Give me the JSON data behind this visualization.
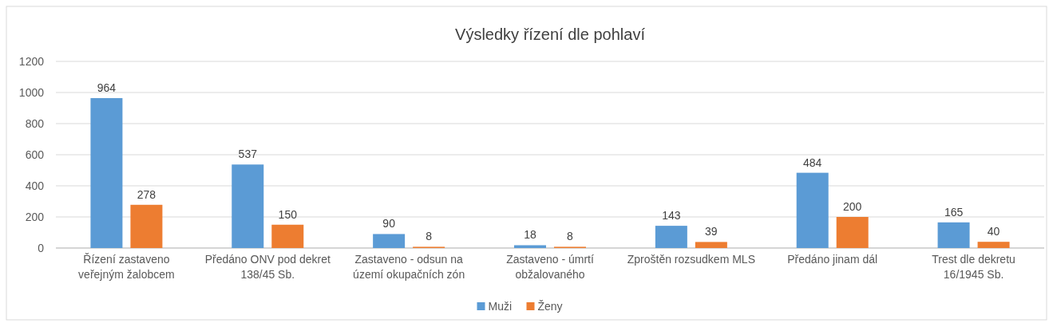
{
  "chart_data": {
    "type": "bar",
    "title": "Výsledky řízení dle pohlaví",
    "categories": [
      "Řízení zastaveno veřejným žalobcem",
      "Předáno ONV pod dekret 138/45 Sb.",
      "Zastaveno - odsun na území okupačních zón",
      "Zastaveno - úmrtí obžalovaného",
      "Zproštěn rozsudkem MLS",
      "Předáno jinam dál",
      "Trest dle dekretu 16/1945 Sb."
    ],
    "series": [
      {
        "name": "Muži",
        "color": "#5b9bd5",
        "values": [
          964,
          537,
          90,
          18,
          143,
          484,
          165
        ]
      },
      {
        "name": "Ženy",
        "color": "#ed7d31",
        "values": [
          278,
          150,
          8,
          8,
          39,
          200,
          40
        ]
      }
    ],
    "ylim": [
      0,
      1200
    ],
    "yticks": [
      0,
      200,
      400,
      600,
      800,
      1000,
      1200
    ],
    "grid": "y",
    "legend": "bottom",
    "data_labels": true
  }
}
